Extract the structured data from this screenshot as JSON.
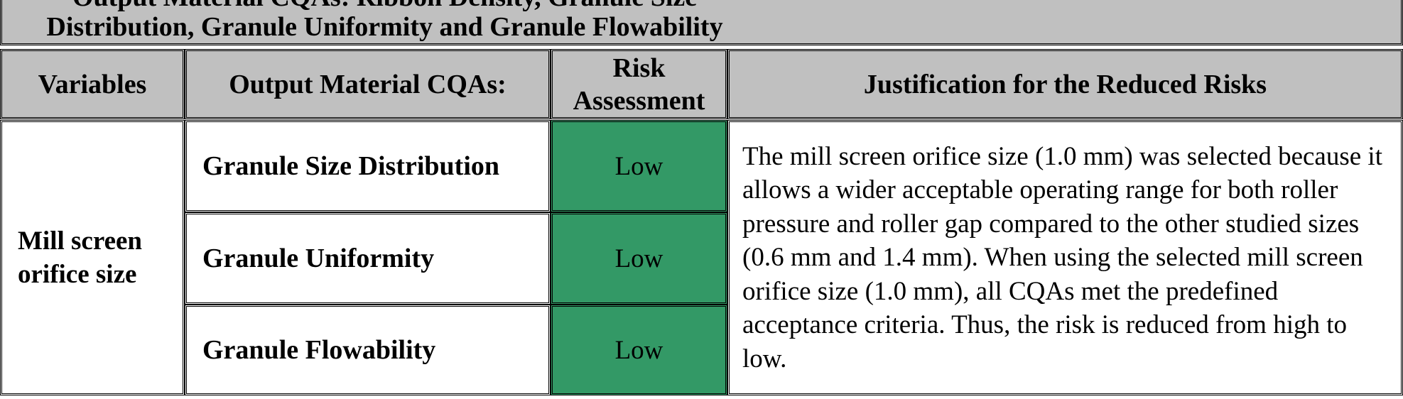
{
  "table": {
    "title": "Output Material CQAs: Ribbon Density, Granule Size Distribution, Granule Uniformity and Granule Flowability",
    "headers": [
      "Variables",
      "Output Material CQAs:",
      "Risk Assessment",
      "Justification for the Reduced Risks"
    ],
    "variable": "Mill screen orifice size",
    "rows": [
      {
        "cqa": "Granule Size Distribution",
        "risk": "Low"
      },
      {
        "cqa": "Granule Uniformity",
        "risk": "Low"
      },
      {
        "cqa": "Granule Flowability",
        "risk": "Low"
      }
    ],
    "justification": "The mill screen orifice size (1.0 mm) was selected because it allows a wider acceptable operating range for both roller pressure and roller gap compared to the other studied sizes (0.6 mm and 1.4 mm). When using the selected mill screen orifice size (1.0 mm), all CQAs met the predefined acceptance criteria. Thus, the risk is reduced from high to low.",
    "colors": {
      "header_bg": "#c0c0c0",
      "low_risk": "#339966"
    }
  }
}
